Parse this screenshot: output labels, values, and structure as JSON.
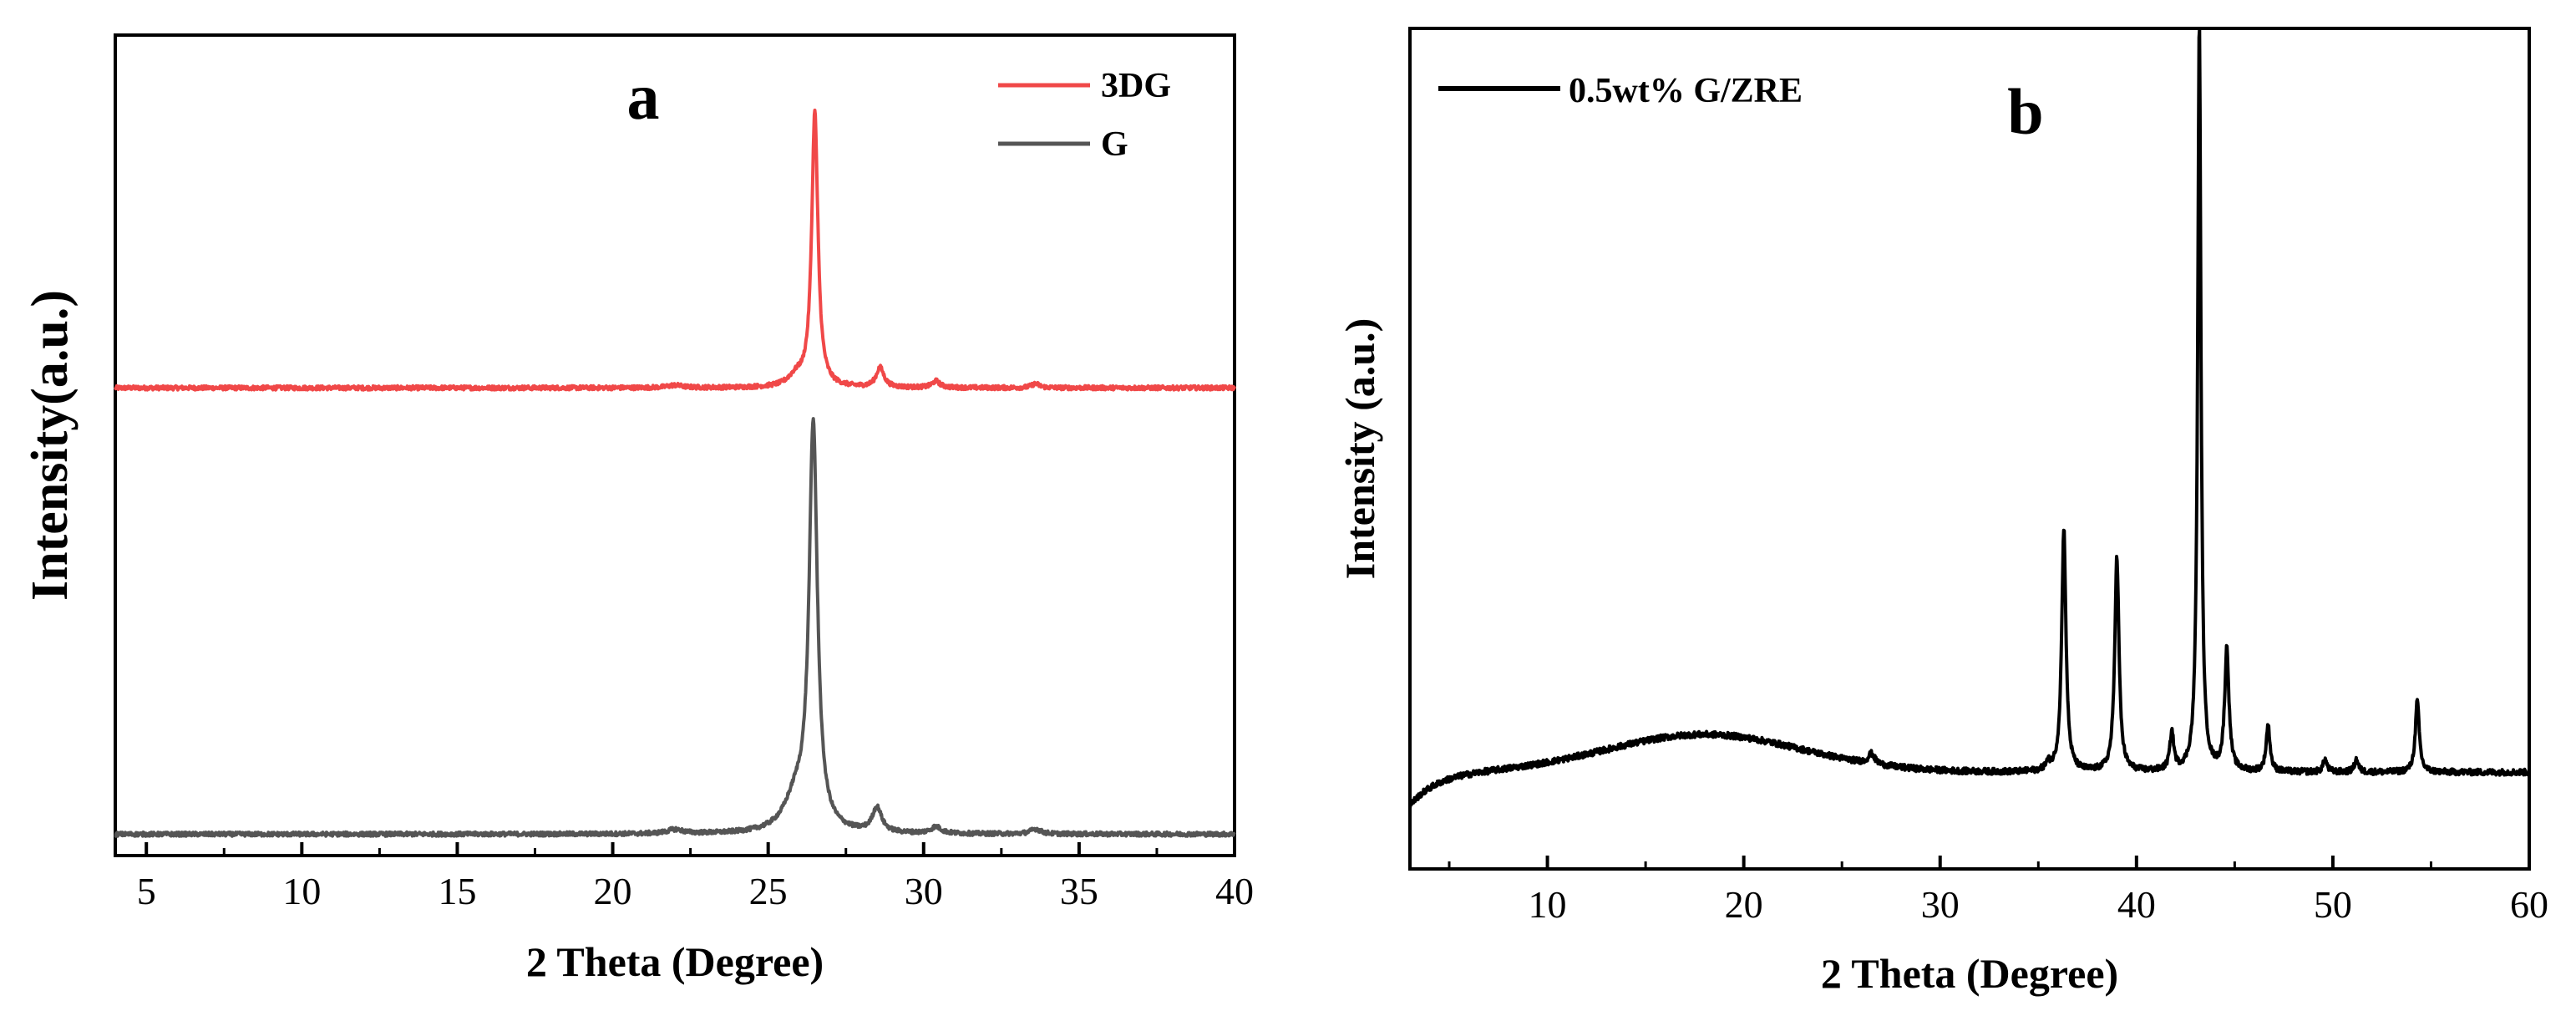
{
  "chart_data": [
    {
      "panel_label": "a",
      "type": "line",
      "xlabel": "2 Theta (Degree)",
      "ylabel": "Intensity(a.u.)",
      "xlim": [
        4,
        40
      ],
      "xticks": [
        5,
        10,
        15,
        20,
        25,
        30,
        35,
        40
      ],
      "ylim": [
        0,
        100
      ],
      "y_ticks_labeled": false,
      "legend_position": "top-right",
      "series": [
        {
          "name": "3DG",
          "color": "#f04848",
          "baseline": 57,
          "noise": 0.25,
          "peaks": [
            {
              "x": 26.5,
              "height": 33.5,
              "width": 0.12
            },
            {
              "x": 25.9,
              "height": 1.2,
              "width": 0.3
            },
            {
              "x": 28.6,
              "height": 2.4,
              "width": 0.15
            },
            {
              "x": 30.4,
              "height": 0.8,
              "width": 0.15
            },
            {
              "x": 33.6,
              "height": 0.5,
              "width": 0.15
            },
            {
              "x": 22.0,
              "height": 0.3,
              "width": 0.3
            }
          ]
        },
        {
          "name": "G",
          "color": "#555555",
          "baseline": 2.6,
          "noise": 0.25,
          "peaks": [
            {
              "x": 26.45,
              "height": 49,
              "width": 0.16
            },
            {
              "x": 25.9,
              "height": 4,
              "width": 0.45
            },
            {
              "x": 28.5,
              "height": 3,
              "width": 0.18
            },
            {
              "x": 30.4,
              "height": 0.8,
              "width": 0.2
            },
            {
              "x": 33.6,
              "height": 0.6,
              "width": 0.2
            },
            {
              "x": 22.0,
              "height": 0.5,
              "width": 0.3
            }
          ]
        }
      ]
    },
    {
      "panel_label": "b",
      "type": "line",
      "xlabel": "2 Theta (Degree)",
      "ylabel": "Intensity (a.u.)",
      "xlim": [
        3,
        60
      ],
      "xticks": [
        10,
        20,
        30,
        40,
        50,
        60
      ],
      "ylim": [
        0,
        100
      ],
      "y_ticks_labeled": false,
      "legend_position": "top-left",
      "series": [
        {
          "name": "0.5wt% G/ZRE",
          "color": "#000000",
          "baseline": 11.5,
          "noise": 0.35,
          "amorphous_hump": {
            "center": 18,
            "height": 4.5,
            "width": 7
          },
          "low_angle_rise": {
            "start": 3,
            "drop": 4,
            "decay": 1.4
          },
          "peaks": [
            {
              "x": 26.5,
              "height": 1.2,
              "width": 0.2
            },
            {
              "x": 35.5,
              "height": 0.8,
              "width": 0.15
            },
            {
              "x": 36.3,
              "height": 29,
              "width": 0.13
            },
            {
              "x": 39.0,
              "height": 25.5,
              "width": 0.13
            },
            {
              "x": 41.8,
              "height": 4.5,
              "width": 0.12
            },
            {
              "x": 43.2,
              "height": 89,
              "width": 0.1
            },
            {
              "x": 44.6,
              "height": 14.5,
              "width": 0.13
            },
            {
              "x": 46.7,
              "height": 5.5,
              "width": 0.12
            },
            {
              "x": 49.6,
              "height": 1.5,
              "width": 0.12
            },
            {
              "x": 51.2,
              "height": 1.5,
              "width": 0.12
            },
            {
              "x": 54.3,
              "height": 8.5,
              "width": 0.12
            }
          ]
        }
      ]
    }
  ]
}
